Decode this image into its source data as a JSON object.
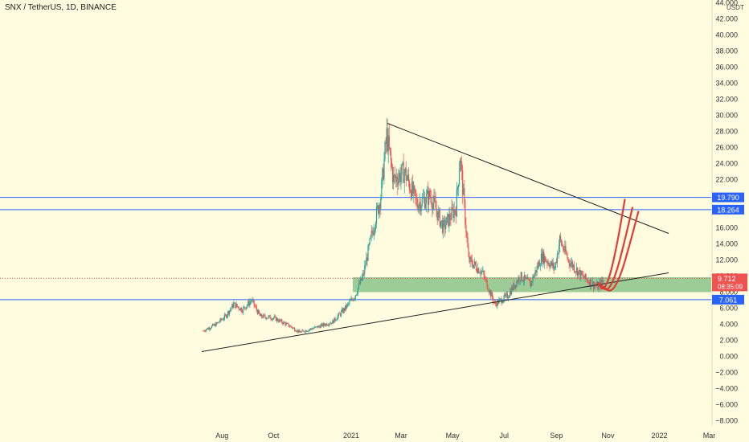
{
  "header": {
    "title": "SNX / TetherUS, 1D, BINANCE",
    "unit": "USDT"
  },
  "colors": {
    "background": "#fffce0",
    "up": "#26a69a",
    "down": "#ef5350",
    "support_zone": "#8bc48a",
    "level_line": "#2962ff",
    "trendline": "#222222",
    "projection": "#e53935",
    "price_label": "#ef5350",
    "level_label": "#2962ff"
  },
  "chart_data": {
    "type": "candlestick",
    "title": "SNX / TetherUS, 1D, BINANCE",
    "ylim": [
      -8,
      44
    ],
    "y_ticks": [
      "44.000",
      "42.000",
      "40.000",
      "38.000",
      "36.000",
      "34.000",
      "32.000",
      "30.000",
      "28.000",
      "26.000",
      "24.000",
      "22.000",
      "20.000",
      "18.000",
      "16.000",
      "14.000",
      "12.000",
      "10.000",
      "8.000",
      "6.000",
      "4.000",
      "2.000",
      "0.000",
      "−2.000",
      "−4.000",
      "−6.000",
      "−8.000"
    ],
    "y_tick_values": [
      44,
      42,
      40,
      38,
      36,
      34,
      32,
      30,
      28,
      26,
      24,
      22,
      20,
      18,
      16,
      14,
      12,
      10,
      8,
      6,
      4,
      2,
      0,
      -2,
      -4,
      -6,
      -8
    ],
    "x_ticks": [
      "Aug",
      "Oct",
      "2021",
      "Mar",
      "May",
      "Jul",
      "Sep",
      "Nov",
      "2022",
      "Mar"
    ],
    "x_tick_dates": [
      "2020-08-01",
      "2020-10-01",
      "2021-01-01",
      "2021-03-01",
      "2021-05-01",
      "2021-07-01",
      "2021-09-01",
      "2021-11-01",
      "2022-01-01",
      "2022-03-01"
    ],
    "price_path": [
      [
        "2020-07-10",
        3.2
      ],
      [
        "2020-07-25",
        4.0
      ],
      [
        "2020-08-05",
        5.0
      ],
      [
        "2020-08-15",
        6.5
      ],
      [
        "2020-08-25",
        5.8
      ],
      [
        "2020-09-05",
        7.0
      ],
      [
        "2020-09-15",
        5.0
      ],
      [
        "2020-10-01",
        4.8
      ],
      [
        "2020-10-20",
        3.8
      ],
      [
        "2020-11-01",
        3.0
      ],
      [
        "2020-11-20",
        3.6
      ],
      [
        "2020-12-10",
        4.3
      ],
      [
        "2020-12-25",
        6.0
      ],
      [
        "2021-01-05",
        7.5
      ],
      [
        "2021-01-15",
        10.0
      ],
      [
        "2021-01-25",
        15.0
      ],
      [
        "2021-02-05",
        20.0
      ],
      [
        "2021-02-12",
        27.5
      ],
      [
        "2021-02-20",
        22.0
      ],
      [
        "2021-03-05",
        23.0
      ],
      [
        "2021-03-20",
        19.0
      ],
      [
        "2021-04-05",
        20.0
      ],
      [
        "2021-04-20",
        16.0
      ],
      [
        "2021-05-05",
        18.5
      ],
      [
        "2021-05-10",
        25.0
      ],
      [
        "2021-05-20",
        12.0
      ],
      [
        "2021-06-05",
        10.5
      ],
      [
        "2021-06-20",
        6.5
      ],
      [
        "2021-07-05",
        7.5
      ],
      [
        "2021-07-20",
        10.0
      ],
      [
        "2021-08-01",
        9.0
      ],
      [
        "2021-08-15",
        12.5
      ],
      [
        "2021-08-30",
        11.0
      ],
      [
        "2021-09-05",
        14.5
      ],
      [
        "2021-09-15",
        12.0
      ],
      [
        "2021-10-01",
        10.0
      ],
      [
        "2021-10-20",
        8.6
      ],
      [
        "2021-10-28",
        9.7
      ]
    ],
    "last_price": {
      "value": 9.712,
      "label": "9.712",
      "countdown": "08:35:09"
    },
    "horizontal_levels": [
      {
        "value": 19.79,
        "label": "19.790"
      },
      {
        "value": 18.264,
        "label": "18.264"
      },
      {
        "value": 7.061,
        "label": "7.061"
      }
    ],
    "support_zone": {
      "from": 8.0,
      "to": 9.85
    },
    "trendlines": [
      {
        "from": [
          "2021-02-13",
          29.0
        ],
        "to": [
          "2022-01-12",
          15.3
        ]
      },
      {
        "from": [
          "2020-07-08",
          0.6
        ],
        "to": [
          "2022-01-12",
          10.4
        ]
      }
    ],
    "projections": [
      {
        "points": [
          [
            "2021-10-20",
            9.2
          ],
          [
            "2021-10-26",
            8.1
          ],
          [
            "2021-11-03",
            9.8
          ],
          [
            "2021-11-12",
            14.0
          ],
          [
            "2021-11-21",
            19.5
          ]
        ]
      },
      {
        "points": [
          [
            "2021-10-23",
            9.0
          ],
          [
            "2021-10-31",
            8.0
          ],
          [
            "2021-11-10",
            10.0
          ],
          [
            "2021-11-20",
            14.0
          ],
          [
            "2021-11-30",
            18.5
          ]
        ]
      },
      {
        "points": [
          [
            "2021-10-26",
            8.7
          ],
          [
            "2021-11-05",
            7.9
          ],
          [
            "2021-11-16",
            10.0
          ],
          [
            "2021-11-27",
            14.0
          ],
          [
            "2021-12-07",
            18.0
          ]
        ]
      }
    ]
  }
}
